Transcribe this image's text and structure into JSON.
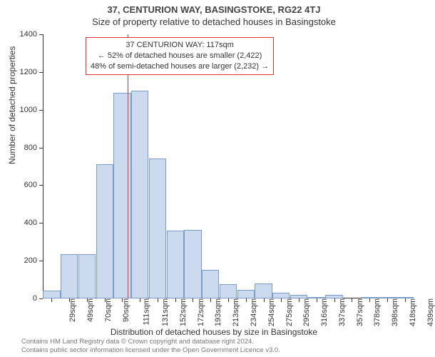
{
  "header": {
    "address": "37, CENTURION WAY, BASINGSTOKE, RG22 4TJ",
    "subtitle": "Size of property relative to detached houses in Basingstoke"
  },
  "chart": {
    "type": "histogram",
    "ylabel": "Number of detached properties",
    "xlabel": "Distribution of detached houses by size in Basingstoke",
    "ylim": [
      0,
      1400
    ],
    "ytick_step": 200,
    "yticks": [
      0,
      200,
      400,
      600,
      800,
      1000,
      1200,
      1400
    ],
    "x_categories": [
      "29sqm",
      "49sqm",
      "70sqm",
      "90sqm",
      "111sqm",
      "131sqm",
      "152sqm",
      "172sqm",
      "193sqm",
      "213sqm",
      "234sqm",
      "254sqm",
      "275sqm",
      "295sqm",
      "316sqm",
      "337sqm",
      "357sqm",
      "378sqm",
      "398sqm",
      "418sqm",
      "439sqm"
    ],
    "values": [
      40,
      235,
      235,
      710,
      1090,
      1100,
      740,
      360,
      365,
      150,
      75,
      45,
      80,
      30,
      20,
      5,
      20,
      0,
      5,
      5,
      5
    ],
    "bar_fill": "#cbdaef",
    "bar_border": "#7a9cc6",
    "background_color": "#ffffff",
    "grid_color": "#808080",
    "axis_color": "#333333",
    "label_fontsize": 12,
    "tick_fontsize": 11,
    "marker": {
      "position_index": 4.3,
      "color": "#e03030"
    },
    "annotation": {
      "line1": "37 CENTURION WAY: 117sqm",
      "line2": "← 52% of detached houses are smaller (2,422)",
      "line3": "48% of semi-detached houses are larger (2,232) →",
      "border_color": "#e03030",
      "background": "#ffffff",
      "fontsize": 11
    }
  },
  "footer": {
    "line1": "Contains HM Land Registry data © Crown copyright and database right 2024.",
    "line2": "Contains public sector information licensed under the Open Government Licence v3.0."
  }
}
